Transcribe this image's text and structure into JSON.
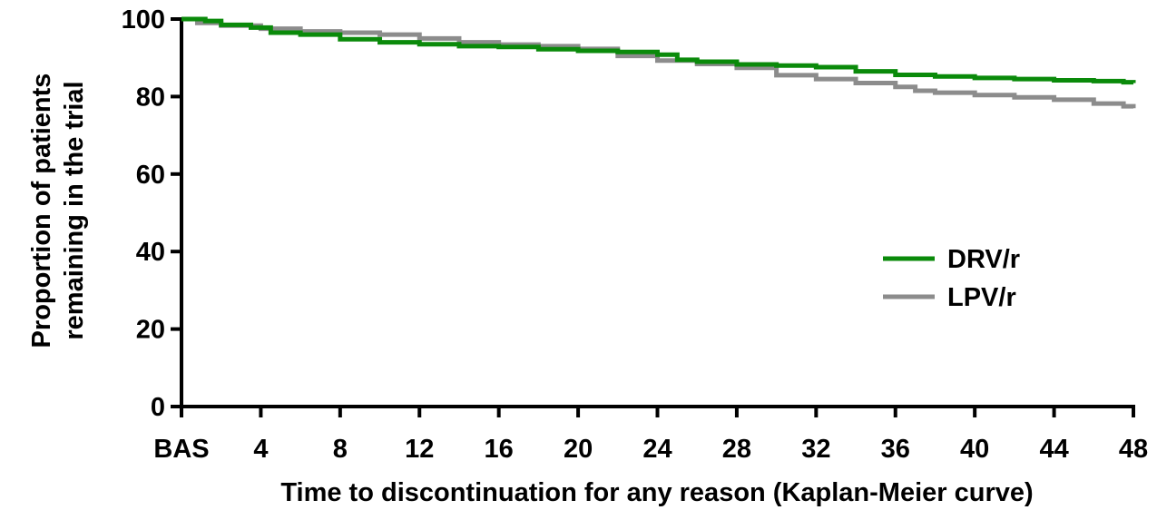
{
  "chart_data": {
    "type": "line",
    "step": true,
    "xlabel": "Time to discontinuation for any reason (Kaplan-Meier curve)",
    "ylabel_lines": [
      "Proportion of patients",
      "remaining in the trial"
    ],
    "xlim": [
      0,
      48
    ],
    "ylim": [
      0,
      100
    ],
    "x_ticks": [
      {
        "value": 0,
        "label": "BAS"
      },
      {
        "value": 4,
        "label": "4"
      },
      {
        "value": 8,
        "label": "8"
      },
      {
        "value": 12,
        "label": "12"
      },
      {
        "value": 16,
        "label": "16"
      },
      {
        "value": 20,
        "label": "20"
      },
      {
        "value": 24,
        "label": "24"
      },
      {
        "value": 28,
        "label": "28"
      },
      {
        "value": 32,
        "label": "32"
      },
      {
        "value": 36,
        "label": "36"
      },
      {
        "value": 40,
        "label": "40"
      },
      {
        "value": 44,
        "label": "44"
      },
      {
        "value": 48,
        "label": "48"
      }
    ],
    "y_ticks": [
      {
        "value": 0,
        "label": "0"
      },
      {
        "value": 20,
        "label": "20"
      },
      {
        "value": 40,
        "label": "40"
      },
      {
        "value": 60,
        "label": "60"
      },
      {
        "value": 80,
        "label": "80"
      },
      {
        "value": 100,
        "label": "100"
      }
    ],
    "grid": false,
    "legend_position": "right-middle",
    "series": [
      {
        "name": "DRV/r",
        "color": "#0a8a0a",
        "points": [
          [
            0,
            100
          ],
          [
            1.2,
            99.5
          ],
          [
            2,
            98.5
          ],
          [
            3.5,
            97.8
          ],
          [
            4.5,
            96.5
          ],
          [
            6,
            96
          ],
          [
            8,
            94.8
          ],
          [
            10,
            94
          ],
          [
            12,
            93.5
          ],
          [
            14,
            93
          ],
          [
            16,
            92.8
          ],
          [
            18,
            92.2
          ],
          [
            20,
            91.8
          ],
          [
            22,
            91.5
          ],
          [
            24,
            90.8
          ],
          [
            25,
            89.5
          ],
          [
            26,
            89
          ],
          [
            28,
            88.3
          ],
          [
            30,
            88
          ],
          [
            32,
            87.6
          ],
          [
            34,
            86.5
          ],
          [
            36,
            85.6
          ],
          [
            38,
            85.2
          ],
          [
            40,
            84.8
          ],
          [
            42,
            84.5
          ],
          [
            44,
            84.2
          ],
          [
            46,
            84
          ],
          [
            47.5,
            83.7
          ],
          [
            48,
            83.5
          ]
        ]
      },
      {
        "name": "LPV/r",
        "color": "#8c8c8c",
        "points": [
          [
            0,
            100
          ],
          [
            0.8,
            99
          ],
          [
            2,
            98.3
          ],
          [
            4,
            97.5
          ],
          [
            6,
            96.8
          ],
          [
            8,
            96.5
          ],
          [
            10,
            96
          ],
          [
            12,
            95
          ],
          [
            14,
            94
          ],
          [
            16,
            93.4
          ],
          [
            18,
            93
          ],
          [
            20,
            92.3
          ],
          [
            22,
            90.5
          ],
          [
            24,
            89.3
          ],
          [
            26,
            88.4
          ],
          [
            28,
            87.4
          ],
          [
            30,
            85.5
          ],
          [
            32,
            84.5
          ],
          [
            34,
            83.5
          ],
          [
            36,
            82.5
          ],
          [
            37,
            81.5
          ],
          [
            38,
            81
          ],
          [
            40,
            80.4
          ],
          [
            42,
            79.8
          ],
          [
            44,
            79.2
          ],
          [
            46,
            78.2
          ],
          [
            47.5,
            77.5
          ],
          [
            48,
            77
          ]
        ]
      }
    ]
  }
}
